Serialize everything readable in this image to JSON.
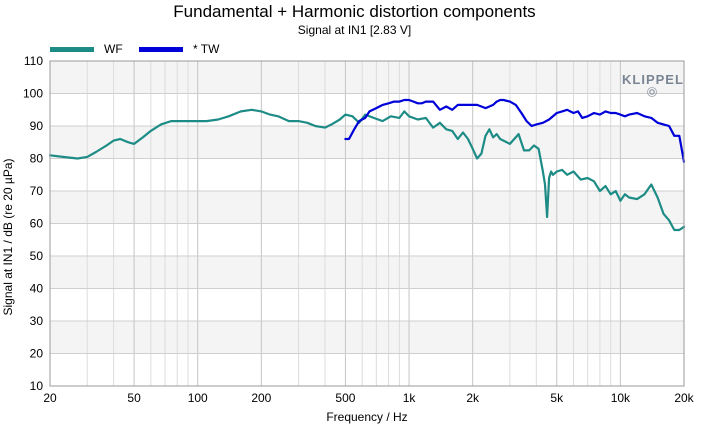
{
  "chart_data": {
    "type": "line",
    "title": "Fundamental + Harmonic distortion components",
    "subtitle": "Signal at IN1 [2.83 V]",
    "xlabel": "Frequency / Hz",
    "ylabel": "Signal at IN1 / dB (re 20 µPa)",
    "x_scale": "log",
    "xlim": [
      20,
      20000
    ],
    "ylim": [
      10,
      110
    ],
    "x_ticks": [
      20,
      50,
      100,
      200,
      500,
      1000,
      2000,
      5000,
      10000,
      20000
    ],
    "x_tick_labels": [
      "20",
      "50",
      "100",
      "200",
      "500",
      "1k",
      "2k",
      "5k",
      "10k",
      "20k"
    ],
    "y_ticks": [
      10,
      20,
      30,
      40,
      50,
      60,
      70,
      80,
      90,
      100,
      110
    ],
    "y_tick_labels": [
      "10",
      "20",
      "30",
      "40",
      "50",
      "60",
      "70",
      "80",
      "90",
      "100",
      "110"
    ],
    "grid": true,
    "legend_position": "top-left",
    "logo_text": "KLIPPEL",
    "series": [
      {
        "name": "WF",
        "color": "#1e8c86",
        "x": [
          20,
          23,
          27,
          30,
          33,
          37,
          40,
          43,
          47,
          50,
          55,
          60,
          67,
          75,
          85,
          95,
          110,
          125,
          140,
          160,
          180,
          200,
          220,
          240,
          270,
          300,
          330,
          360,
          400,
          430,
          470,
          500,
          540,
          580,
          620,
          680,
          750,
          820,
          900,
          950,
          1000,
          1100,
          1200,
          1300,
          1400,
          1500,
          1600,
          1700,
          1800,
          1900,
          2000,
          2100,
          2200,
          2300,
          2400,
          2500,
          2600,
          2700,
          2800,
          3000,
          3300,
          3500,
          3700,
          3900,
          4100,
          4300,
          4400,
          4500,
          4600,
          4700,
          4800,
          5000,
          5300,
          5600,
          6000,
          6500,
          7000,
          7500,
          8000,
          8500,
          9000,
          9500,
          10000,
          10500,
          11000,
          12000,
          13000,
          14000,
          15000,
          16000,
          17000,
          18000,
          19000,
          20000
        ],
        "values": [
          81,
          80.5,
          80,
          80.5,
          82,
          84,
          85.5,
          86,
          85,
          84.5,
          86.5,
          88.5,
          90.5,
          91.5,
          91.5,
          91.5,
          91.5,
          92,
          93,
          94.5,
          95,
          94.5,
          93.5,
          93,
          91.5,
          91.5,
          91,
          90,
          89.5,
          90.5,
          92,
          93.5,
          93,
          91,
          93.5,
          92.5,
          91.5,
          93,
          92.5,
          94.5,
          93,
          92,
          92.5,
          89.5,
          91,
          89,
          88.5,
          86,
          88,
          86,
          83,
          80,
          81.5,
          87,
          89,
          86.5,
          87.5,
          86,
          85.5,
          84.5,
          87.5,
          82.5,
          82.5,
          84,
          83,
          76,
          72,
          62,
          74,
          76,
          75,
          76,
          76.5,
          75,
          76,
          73.5,
          74,
          73,
          70,
          71.5,
          69,
          70,
          67,
          69,
          68,
          67.5,
          69,
          72,
          68,
          63,
          61,
          58,
          58,
          59
        ]
      },
      {
        "name": "* TW",
        "color": "#0000d8",
        "x": [
          500,
          520,
          550,
          580,
          620,
          650,
          700,
          750,
          800,
          850,
          900,
          950,
          1000,
          1050,
          1100,
          1150,
          1200,
          1300,
          1400,
          1500,
          1600,
          1700,
          1800,
          1900,
          2000,
          2100,
          2200,
          2300,
          2400,
          2500,
          2600,
          2700,
          2800,
          3000,
          3200,
          3400,
          3600,
          3800,
          4000,
          4300,
          4600,
          5000,
          5300,
          5600,
          6000,
          6300,
          6600,
          7000,
          7500,
          8000,
          8500,
          9000,
          9500,
          10000,
          10500,
          11000,
          12000,
          13000,
          14000,
          15000,
          16000,
          17000,
          18000,
          19000,
          20000
        ],
        "values": [
          86,
          86,
          89,
          91.5,
          92.5,
          94.5,
          95.5,
          96.5,
          97,
          97.5,
          97.5,
          98,
          98,
          97.5,
          97,
          97,
          97.5,
          97.5,
          95,
          96,
          95,
          96.5,
          96.5,
          96.5,
          96.5,
          96.5,
          96,
          95.5,
          96,
          96.5,
          97.5,
          98,
          98,
          97.5,
          96.5,
          94,
          91.5,
          90,
          90.5,
          91,
          92,
          94,
          94.5,
          95,
          94,
          94.5,
          92.5,
          93,
          94,
          93.5,
          94.5,
          94,
          94,
          93.5,
          93,
          93.5,
          94,
          93,
          92.5,
          91,
          90.5,
          90,
          87,
          87,
          79
        ]
      }
    ]
  }
}
